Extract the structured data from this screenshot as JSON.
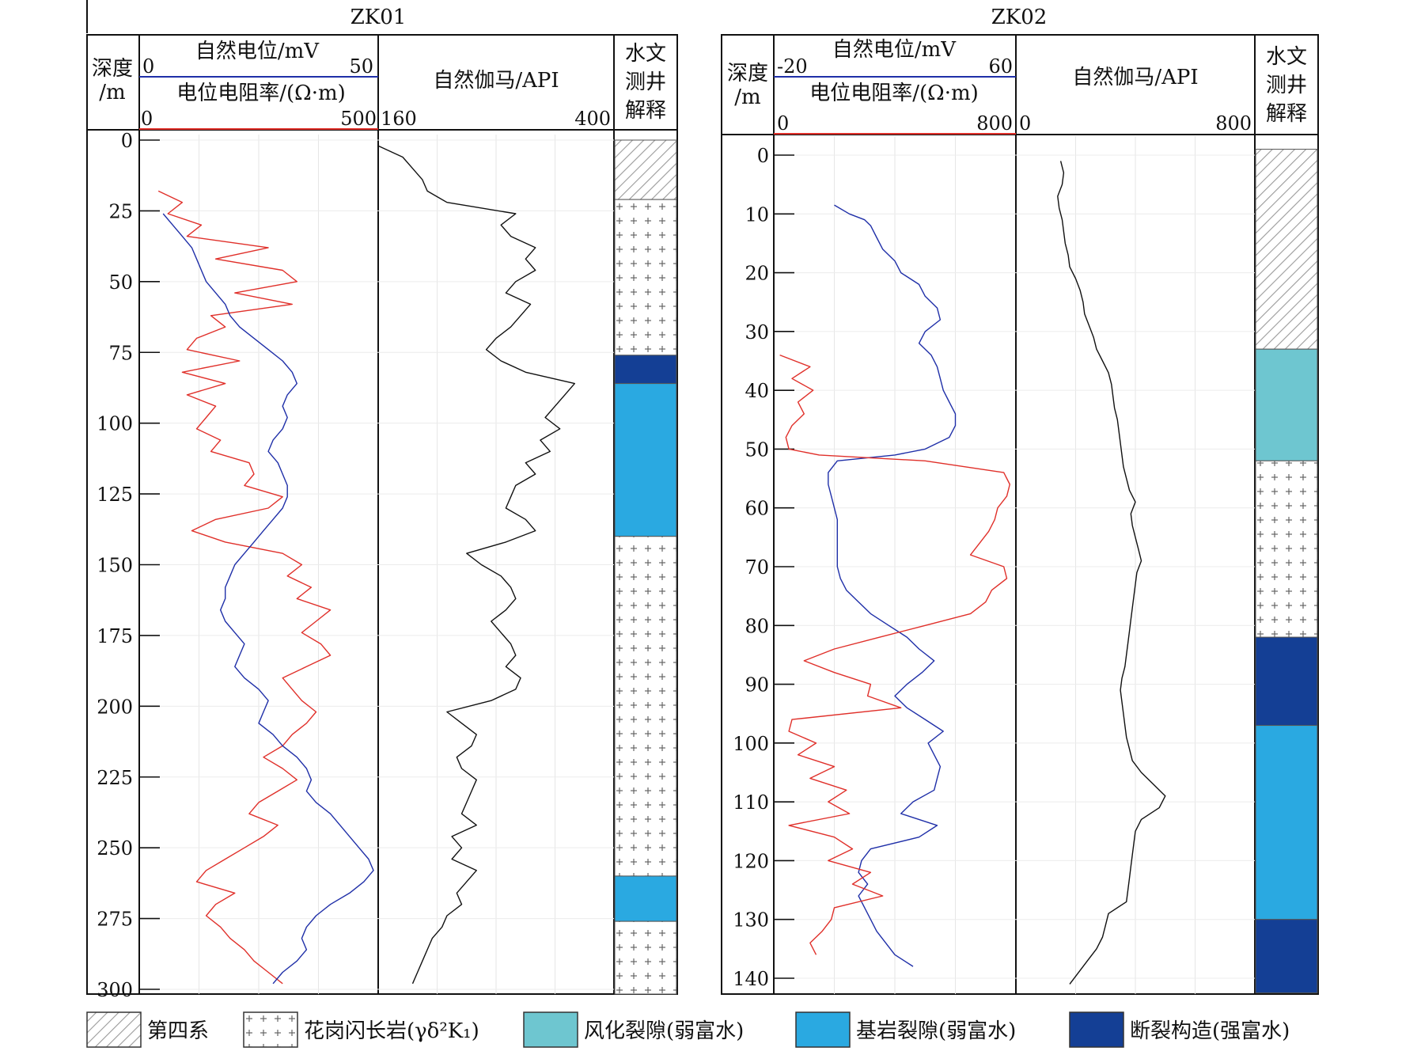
{
  "panels": [
    {
      "title": "ZK01",
      "header": {
        "depth_label_1": "深度",
        "depth_label_2": "/m",
        "sp_label": "自然电位/mV",
        "sp_min": "0",
        "sp_max": "50",
        "res_label": "电位电阻率/(Ω·m)",
        "res_min": "0",
        "res_max": "500",
        "gamma_label": "自然伽马/API",
        "gamma_min": "160",
        "gamma_max": "400",
        "interp_1": "水文",
        "interp_2": "测井",
        "interp_3": "解释"
      }
    },
    {
      "title": "ZK02",
      "header": {
        "depth_label_1": "深度",
        "depth_label_2": "/m",
        "sp_label": "自然电位/mV",
        "sp_min": "-20",
        "sp_max": "60",
        "res_label": "电位电阻率/(Ω·m)",
        "res_min": "0",
        "res_max": "800",
        "gamma_label": "自然伽马/API",
        "gamma_min": "0",
        "gamma_max": "800",
        "interp_1": "水文",
        "interp_2": "测井",
        "interp_3": "解释"
      }
    }
  ],
  "legend": [
    {
      "key": "quaternary",
      "label": "第四系"
    },
    {
      "key": "granodiorite",
      "label": "花岗闪长岩(γδ²K₁)"
    },
    {
      "key": "weathered",
      "label": "风化裂隙(弱富水)"
    },
    {
      "key": "bedrock",
      "label": "基岩裂隙(弱富水)"
    },
    {
      "key": "fault",
      "label": "断裂构造(强富水)"
    }
  ],
  "colors": {
    "sp_curve": "#1f2fa8",
    "res_curve": "#e0302a",
    "gamma_curve": "#111111",
    "weathered": "#6ec6d0",
    "bedrock": "#2aa9e1",
    "fault": "#143f95"
  },
  "chart_data": [
    {
      "type": "line",
      "title": "ZK01",
      "depth_ticks": [
        0,
        25,
        50,
        75,
        100,
        125,
        150,
        175,
        200,
        225,
        250,
        275,
        300
      ],
      "depth_range": [
        0,
        300
      ],
      "sp_range": [
        0,
        50
      ],
      "res_range": [
        0,
        500
      ],
      "gamma_range": [
        160,
        400
      ],
      "series": [
        {
          "key": "res",
          "depth": [
            18,
            22,
            26,
            30,
            34,
            38,
            42,
            46,
            50,
            54,
            58,
            62,
            66,
            70,
            74,
            78,
            82,
            86,
            90,
            94,
            98,
            102,
            106,
            110,
            114,
            118,
            122,
            126,
            130,
            134,
            138,
            142,
            146,
            150,
            154,
            158,
            162,
            166,
            170,
            174,
            178,
            182,
            186,
            190,
            194,
            198,
            202,
            206,
            210,
            214,
            218,
            222,
            226,
            230,
            234,
            238,
            242,
            246,
            250,
            254,
            258,
            262,
            266,
            270,
            274,
            278,
            282,
            286,
            290,
            294,
            298
          ],
          "values": [
            40,
            90,
            60,
            130,
            100,
            270,
            160,
            300,
            330,
            200,
            320,
            150,
            180,
            120,
            100,
            210,
            90,
            180,
            100,
            160,
            140,
            120,
            170,
            150,
            230,
            240,
            220,
            300,
            270,
            160,
            110,
            180,
            300,
            340,
            310,
            360,
            330,
            400,
            370,
            340,
            380,
            400,
            350,
            300,
            320,
            340,
            370,
            350,
            320,
            300,
            260,
            300,
            330,
            290,
            250,
            230,
            290,
            260,
            220,
            180,
            140,
            120,
            200,
            160,
            140,
            170,
            190,
            220,
            240,
            270,
            300
          ]
        },
        {
          "key": "sp",
          "depth": [
            26,
            30,
            34,
            38,
            42,
            46,
            50,
            54,
            58,
            62,
            66,
            70,
            74,
            78,
            82,
            86,
            90,
            94,
            98,
            102,
            106,
            110,
            114,
            118,
            122,
            126,
            130,
            134,
            138,
            142,
            146,
            150,
            154,
            158,
            162,
            166,
            170,
            174,
            178,
            182,
            186,
            190,
            194,
            198,
            202,
            206,
            210,
            214,
            218,
            222,
            226,
            230,
            234,
            238,
            242,
            246,
            250,
            254,
            258,
            262,
            266,
            270,
            274,
            278,
            282,
            286,
            290,
            294,
            298
          ],
          "values": [
            5,
            7,
            9,
            11,
            12,
            13,
            14,
            16,
            18,
            19,
            21,
            24,
            27,
            30,
            32,
            33,
            31,
            30,
            31,
            30,
            28,
            27,
            29,
            30,
            31,
            31,
            30,
            28,
            26,
            24,
            22,
            20,
            19,
            18,
            18,
            17,
            18,
            20,
            22,
            21,
            20,
            22,
            25,
            27,
            26,
            25,
            28,
            30,
            33,
            35,
            36,
            35,
            37,
            40,
            42,
            44,
            46,
            48,
            49,
            47,
            44,
            40,
            37,
            35,
            34,
            35,
            33,
            30,
            28
          ]
        },
        {
          "key": "gamma",
          "depth": [
            2,
            6,
            10,
            14,
            18,
            22,
            26,
            30,
            34,
            38,
            42,
            46,
            50,
            54,
            58,
            62,
            66,
            70,
            74,
            78,
            82,
            86,
            90,
            94,
            98,
            102,
            106,
            110,
            114,
            118,
            122,
            126,
            130,
            134,
            138,
            142,
            146,
            150,
            154,
            158,
            162,
            166,
            170,
            174,
            178,
            182,
            186,
            190,
            194,
            198,
            202,
            206,
            210,
            214,
            218,
            222,
            226,
            230,
            234,
            238,
            242,
            246,
            250,
            254,
            258,
            262,
            266,
            270,
            274,
            278,
            282,
            286,
            290,
            294,
            298
          ],
          "values": [
            160,
            185,
            195,
            205,
            210,
            230,
            300,
            285,
            295,
            320,
            310,
            320,
            300,
            290,
            315,
            305,
            295,
            280,
            270,
            285,
            310,
            360,
            350,
            340,
            330,
            345,
            325,
            335,
            310,
            320,
            300,
            295,
            290,
            310,
            320,
            290,
            250,
            265,
            285,
            295,
            300,
            290,
            275,
            285,
            295,
            300,
            290,
            305,
            300,
            275,
            230,
            245,
            260,
            255,
            240,
            245,
            260,
            255,
            250,
            245,
            260,
            235,
            245,
            235,
            260,
            250,
            240,
            245,
            230,
            225,
            215,
            210,
            205,
            200,
            195
          ]
        }
      ],
      "intervals": [
        {
          "from": 0,
          "to": 21,
          "type": "quaternary"
        },
        {
          "from": 21,
          "to": 76,
          "type": "granodiorite"
        },
        {
          "from": 76,
          "to": 86,
          "type": "fault"
        },
        {
          "from": 86,
          "to": 140,
          "type": "bedrock"
        },
        {
          "from": 140,
          "to": 260,
          "type": "granodiorite"
        },
        {
          "from": 260,
          "to": 276,
          "type": "bedrock"
        },
        {
          "from": 276,
          "to": 307,
          "type": "granodiorite"
        }
      ]
    },
    {
      "type": "line",
      "title": "ZK02",
      "depth_ticks": [
        0,
        10,
        20,
        30,
        40,
        50,
        60,
        70,
        80,
        90,
        100,
        110,
        120,
        130,
        140
      ],
      "depth_range": [
        0,
        140
      ],
      "sp_range": [
        -20,
        60
      ],
      "res_range": [
        0,
        800
      ],
      "gamma_range": [
        0,
        800
      ],
      "series": [
        {
          "key": "sp",
          "depth": [
            8.5,
            10,
            11,
            12,
            14,
            16,
            18,
            20,
            22,
            24,
            26,
            28,
            30,
            32,
            34,
            36,
            38,
            40,
            42,
            44,
            46,
            48,
            50,
            51,
            52,
            54,
            56,
            58,
            60,
            62,
            64,
            66,
            68,
            70,
            72,
            74,
            76,
            78,
            80,
            82,
            84,
            86,
            88,
            90,
            92,
            94,
            96,
            98,
            100,
            102,
            104,
            106,
            108,
            110,
            112,
            114,
            116,
            118,
            120,
            122,
            124,
            126,
            128,
            130,
            132,
            134,
            136,
            138
          ],
          "values": [
            0,
            5,
            10,
            12,
            14,
            16,
            20,
            22,
            28,
            30,
            34,
            35,
            30,
            28,
            32,
            34,
            35,
            36,
            38,
            40,
            40,
            38,
            30,
            20,
            1,
            -2,
            -2,
            -1,
            0,
            1,
            1,
            1,
            1,
            1,
            2,
            4,
            8,
            12,
            18,
            24,
            28,
            33,
            29,
            24,
            20,
            24,
            30,
            36,
            31,
            33,
            35,
            34,
            33,
            26,
            22,
            34,
            28,
            12,
            9,
            8,
            11,
            8,
            10,
            12,
            14,
            17,
            20,
            26
          ]
        },
        {
          "key": "res",
          "depth": [
            34,
            36,
            38,
            40,
            42,
            44,
            46,
            48,
            50,
            51,
            52,
            54,
            56,
            58,
            60,
            62,
            64,
            66,
            68,
            70,
            72,
            74,
            76,
            78,
            80,
            82,
            84,
            86,
            88,
            90,
            92,
            94,
            96,
            98,
            100,
            102,
            104,
            106,
            108,
            110,
            112,
            114,
            116,
            118,
            120,
            122,
            124,
            126,
            128,
            130,
            132,
            134,
            136
          ],
          "values": [
            20,
            120,
            60,
            130,
            80,
            100,
            60,
            40,
            50,
            150,
            500,
            760,
            780,
            770,
            740,
            730,
            710,
            680,
            650,
            760,
            770,
            720,
            700,
            650,
            500,
            350,
            200,
            100,
            200,
            320,
            310,
            420,
            60,
            50,
            140,
            80,
            200,
            120,
            240,
            180,
            250,
            50,
            200,
            260,
            180,
            320,
            260,
            360,
            200,
            190,
            160,
            120,
            140
          ]
        },
        {
          "key": "gamma",
          "depth": [
            1,
            3,
            5,
            7,
            9,
            11,
            13,
            15,
            17,
            19,
            21,
            23,
            25,
            27,
            29,
            31,
            33,
            35,
            37,
            39,
            41,
            43,
            45,
            47,
            49,
            51,
            53,
            55,
            57,
            59,
            61,
            63,
            65,
            67,
            69,
            71,
            73,
            75,
            77,
            79,
            81,
            83,
            85,
            87,
            89,
            91,
            93,
            95,
            97,
            99,
            101,
            103,
            105,
            107,
            109,
            111,
            113,
            115,
            117,
            119,
            121,
            123,
            125,
            127,
            129,
            131,
            133,
            135,
            137,
            139,
            141
          ],
          "values": [
            150,
            160,
            155,
            140,
            145,
            155,
            160,
            165,
            175,
            180,
            200,
            215,
            225,
            230,
            245,
            260,
            270,
            290,
            310,
            320,
            325,
            330,
            340,
            345,
            350,
            355,
            360,
            370,
            380,
            400,
            385,
            390,
            400,
            410,
            420,
            405,
            400,
            395,
            390,
            385,
            380,
            375,
            370,
            365,
            355,
            350,
            355,
            360,
            365,
            370,
            380,
            390,
            420,
            460,
            500,
            480,
            420,
            400,
            395,
            390,
            385,
            380,
            375,
            370,
            310,
            300,
            290,
            270,
            240,
            210,
            180
          ]
        }
      ],
      "intervals": [
        {
          "from": -1,
          "to": 33,
          "type": "quaternary"
        },
        {
          "from": 33,
          "to": 52,
          "type": "weathered"
        },
        {
          "from": 52,
          "to": 82,
          "type": "granodiorite"
        },
        {
          "from": 82,
          "to": 97,
          "type": "fault"
        },
        {
          "from": 97,
          "to": 130,
          "type": "bedrock"
        },
        {
          "from": 130,
          "to": 142.5,
          "type": "fault"
        }
      ]
    }
  ]
}
